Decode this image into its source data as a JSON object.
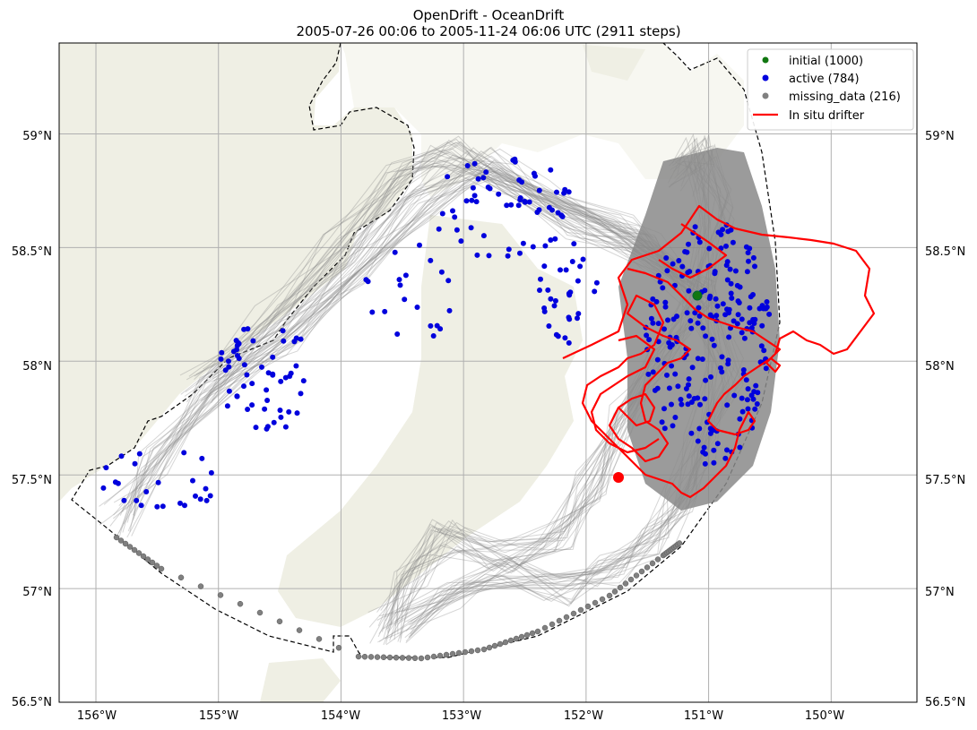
{
  "header": {
    "title": "OpenDrift - OceanDrift",
    "subtitle": "2005-07-26 00:06 to 2005-11-24 06:06 UTC (2911 steps)"
  },
  "colors": {
    "land": "#efefe4",
    "trajectory": "#8a8a8a",
    "active": "#0000dd",
    "missing": "#808080",
    "initial": "#117711",
    "drifter": "#ff0000",
    "grid": "#b0b0b0"
  },
  "axes": {
    "lon_labels": [
      "156°W",
      "155°W",
      "154°W",
      "153°W",
      "152°W",
      "151°W",
      "150°W"
    ],
    "lat_labels_left": [
      "59°N",
      "58.5°N",
      "58°N",
      "57.5°N",
      "57°N",
      "56.5°N"
    ],
    "lat_labels_right": [
      "59°N",
      "58.5°N",
      "58°N",
      "57.5°N",
      "57°N",
      "56.5°N"
    ]
  },
  "legend": {
    "items": [
      {
        "label": "initial (1000)",
        "kind": "dot",
        "color": "#117711"
      },
      {
        "label": "active (784)",
        "kind": "dot",
        "color": "#0000dd"
      },
      {
        "label": "missing_data (216)",
        "kind": "dot",
        "color": "#808080"
      },
      {
        "label": "In situ drifter",
        "kind": "line",
        "color": "#ff0000"
      }
    ]
  },
  "chart_data": {
    "type": "map",
    "title": "OpenDrift - OceanDrift",
    "subtitle": "2005-07-26 00:06 to 2005-11-24 06:06 UTC (2911 steps)",
    "lon_range": [
      -156.3,
      -149.3
    ],
    "lat_range": [
      56.5,
      59.4
    ],
    "lon_ticks": [
      -156,
      -155,
      -154,
      -153,
      -152,
      -151,
      -150
    ],
    "lat_ticks": [
      56.5,
      57,
      57.5,
      58,
      58.5,
      59
    ],
    "counts": {
      "initial": 1000,
      "active": 784,
      "missing_data": 216
    },
    "seed_location": {
      "lon": -151.03,
      "lat": 58.32
    },
    "drifter_end": {
      "lon": -151.7,
      "lat": 57.51
    }
  }
}
